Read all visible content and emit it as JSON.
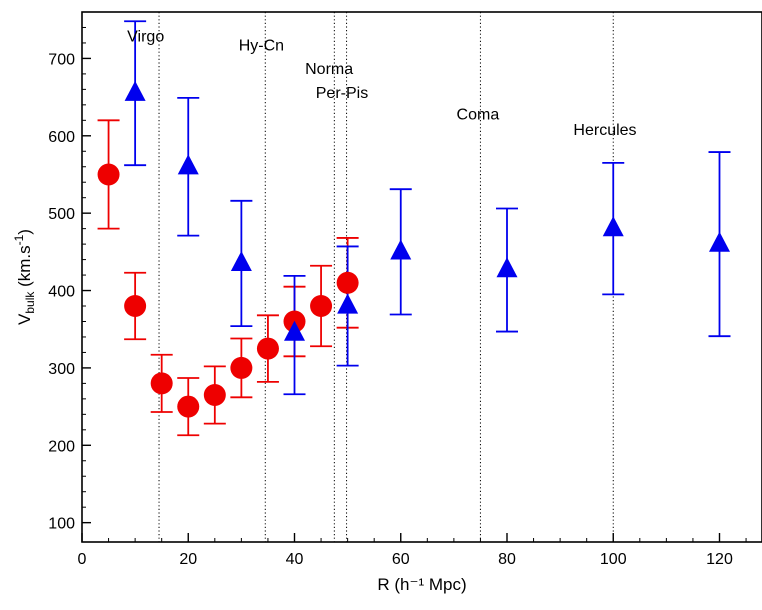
{
  "chart_data": {
    "type": "scatter",
    "xlabel": "R (h⁻¹ Mpc)",
    "ylabel": "V_bulk (km.s⁻¹)",
    "ylabel_parts": {
      "main": "V",
      "sub": "bulk",
      "unit_open": " (km.s",
      "sup": "-1",
      "unit_close": ")"
    },
    "xlim": [
      0,
      128
    ],
    "ylim": [
      75,
      760
    ],
    "xticks": [
      0,
      20,
      40,
      60,
      80,
      100,
      120
    ],
    "yticks": [
      100,
      200,
      300,
      400,
      500,
      600,
      700
    ],
    "grid": false,
    "series": [
      {
        "marker": "circle",
        "color": "#ee0000",
        "x": [
          5,
          10,
          15,
          20,
          25,
          30,
          35,
          40,
          45,
          50
        ],
        "y": [
          550,
          380,
          280,
          250,
          265,
          300,
          325,
          360,
          380,
          410
        ],
        "yerr_low": [
          480,
          337,
          243,
          213,
          228,
          262,
          282,
          315,
          328,
          352
        ],
        "yerr_high": [
          620,
          423,
          317,
          287,
          302,
          338,
          368,
          405,
          432,
          468
        ]
      },
      {
        "marker": "triangle",
        "color": "#0000ee",
        "x": [
          10,
          20,
          30,
          40,
          50,
          60,
          80,
          100,
          120
        ],
        "y": [
          655,
          560,
          435,
          345,
          380,
          450,
          427,
          480,
          460
        ],
        "yerr_low": [
          562,
          471,
          354,
          266,
          303,
          369,
          347,
          395,
          341
        ],
        "yerr_high": [
          748,
          649,
          516,
          419,
          457,
          531,
          506,
          565,
          579
        ]
      }
    ],
    "reference_lines": [
      {
        "x": 14.5,
        "label": "Virgo",
        "label_at": [
          8.5,
          722
        ]
      },
      {
        "x": 34.5,
        "label": "Hy-Cn",
        "label_at": [
          29.5,
          710
        ]
      },
      {
        "x": 47.5,
        "label": "Norma",
        "label_at": [
          42,
          680
        ]
      },
      {
        "x": 49.8,
        "label": "Per-Pis",
        "label_at": [
          44,
          649
        ]
      },
      {
        "x": 75,
        "label": "Coma",
        "label_at": [
          70.5,
          621
        ]
      },
      {
        "x": 100,
        "label": "Hercules",
        "label_at": [
          92.5,
          601
        ]
      }
    ]
  }
}
